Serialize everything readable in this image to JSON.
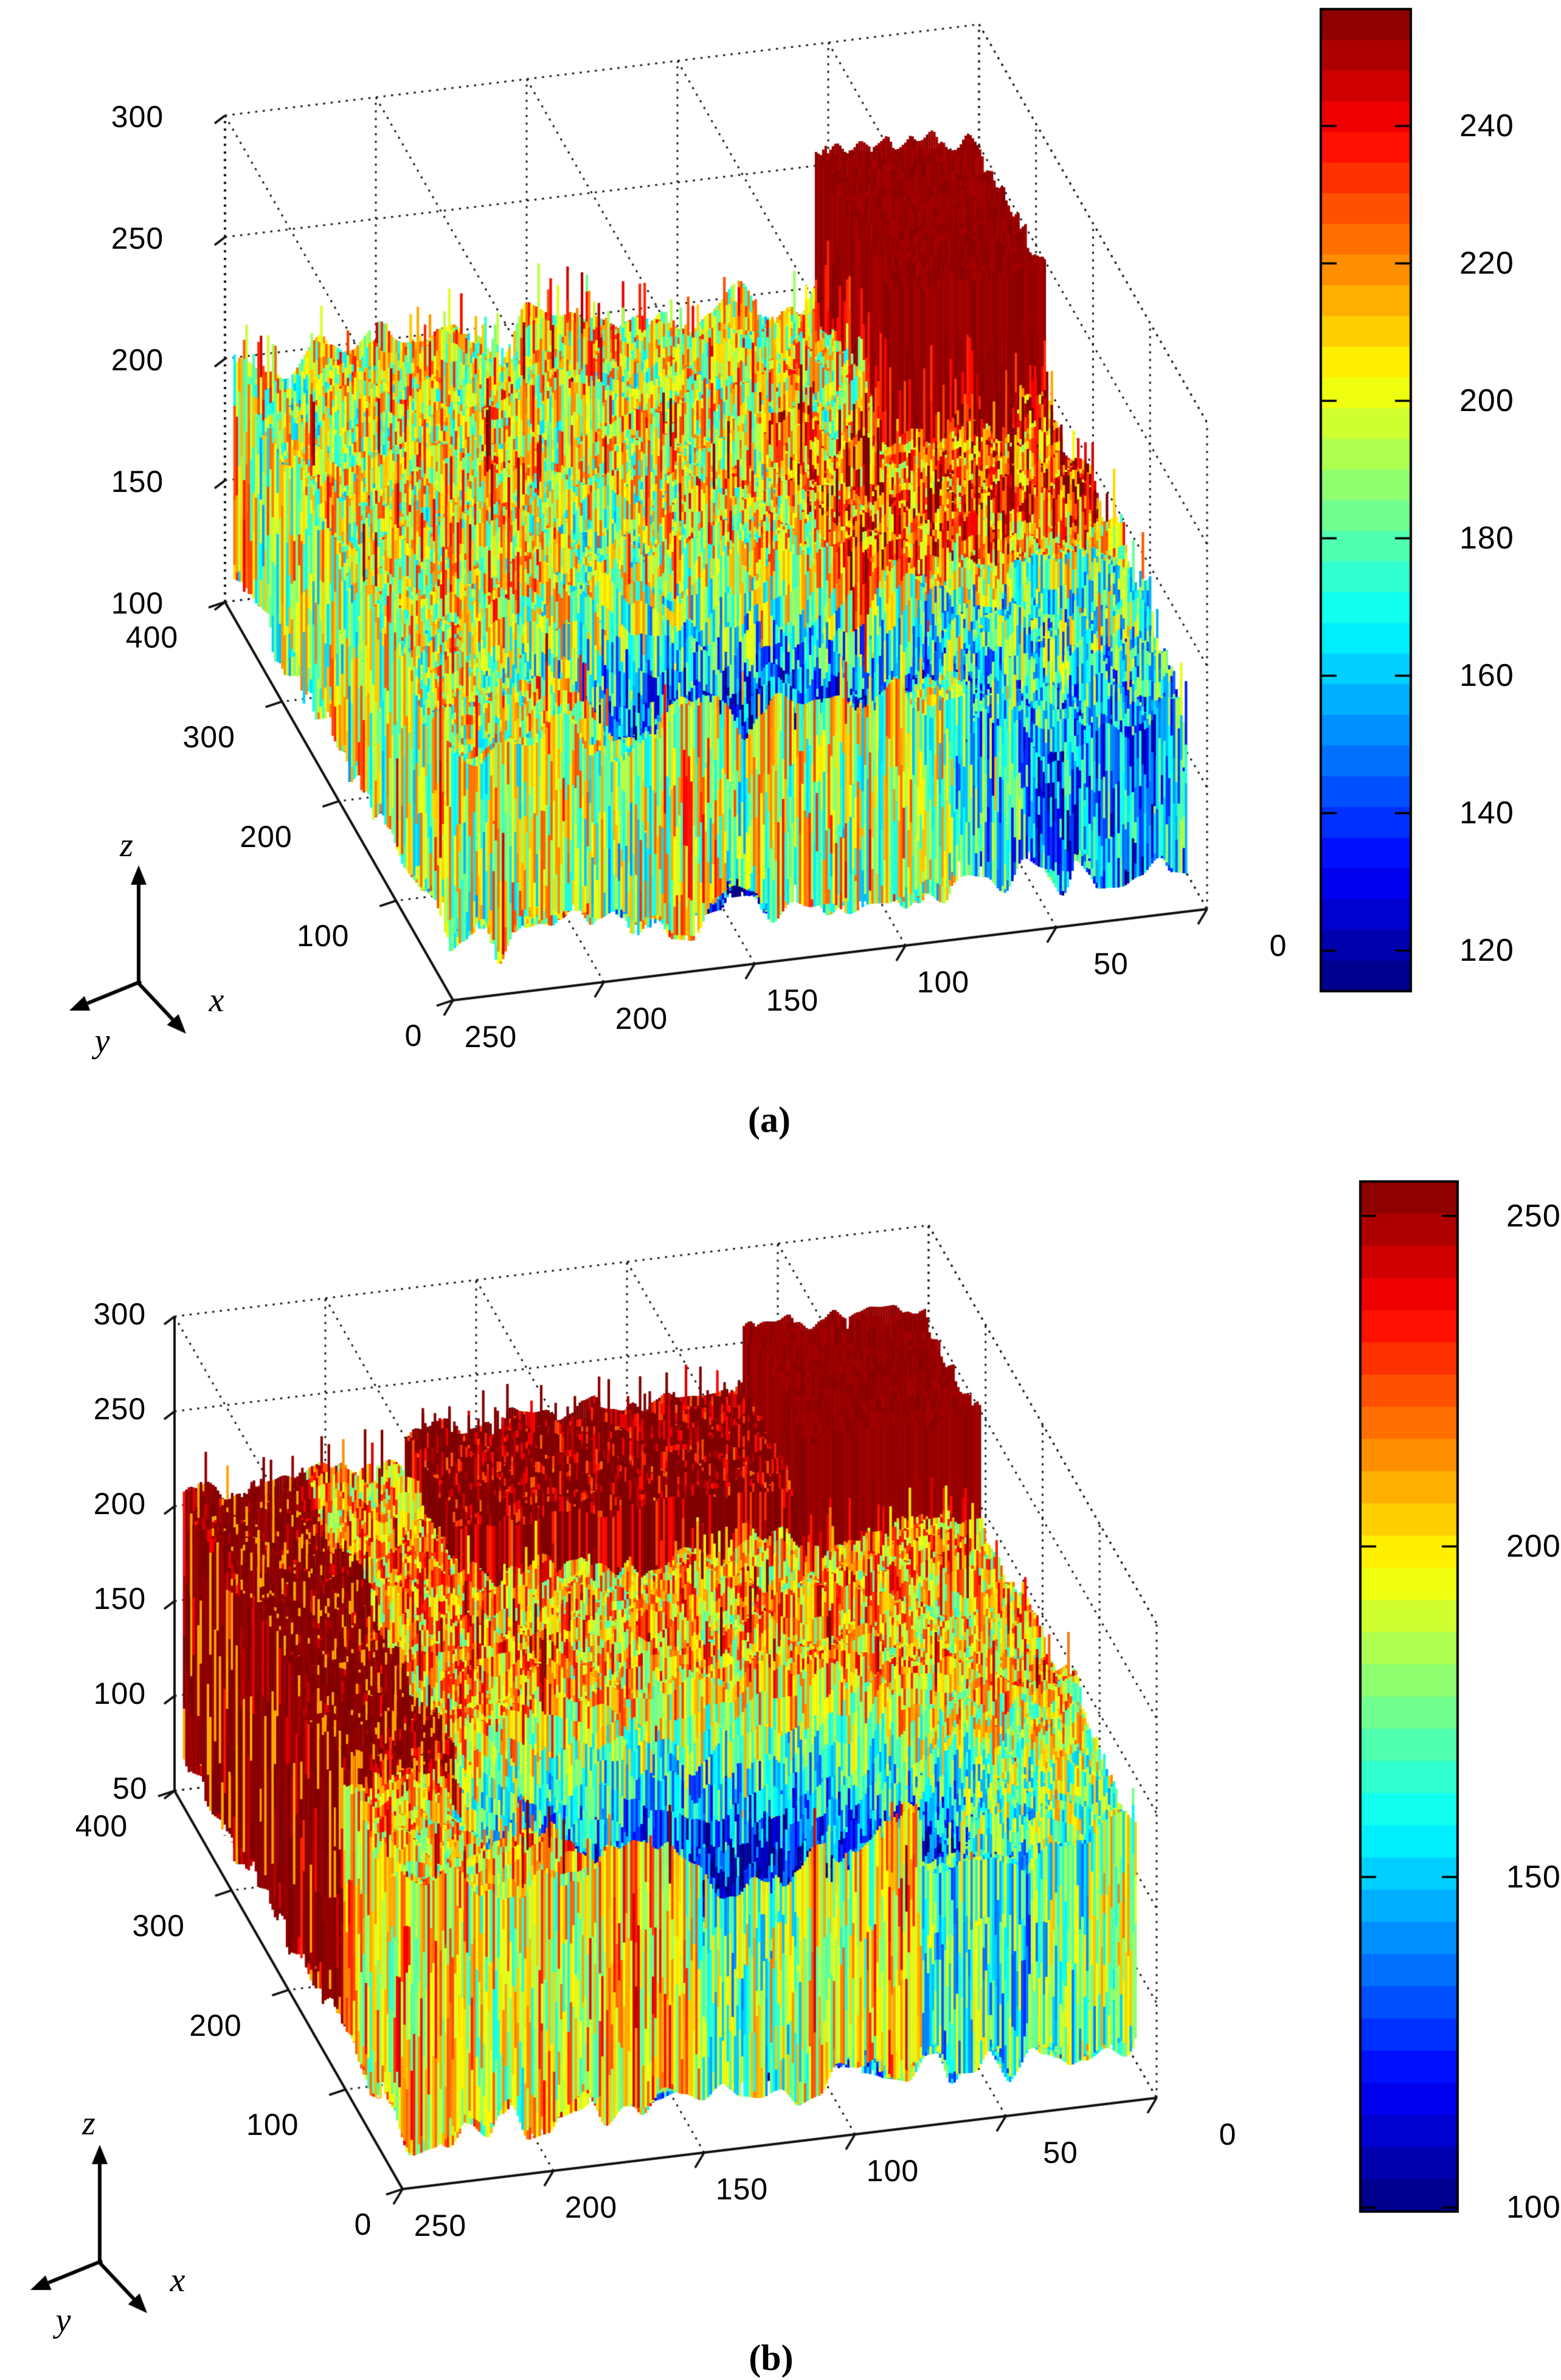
{
  "figure": {
    "background": "#ffffff",
    "description": "Two MATLAB-style 3D surface plots of image gray-level intensity over pixel coordinates, each with a quantized jet colorbar",
    "colormap": "jet",
    "color_extremes": {
      "low": "#00008f",
      "high": "#800000"
    }
  },
  "chart_data": [
    {
      "id": "a",
      "type": "surface3d",
      "caption": "(a)",
      "x_axis": {
        "ticks": [
          "250",
          "200",
          "150",
          "100",
          "50",
          "0"
        ],
        "range": [
          0,
          250
        ]
      },
      "y_axis": {
        "ticks": [
          "400",
          "300",
          "200",
          "100",
          "0"
        ],
        "range": [
          0,
          400
        ]
      },
      "z_axis": {
        "ticks": [
          "300",
          "250",
          "200",
          "150",
          "100"
        ],
        "range": [
          100,
          300
        ]
      },
      "colorbar": {
        "ticks": [
          "240",
          "220",
          "200",
          "180",
          "160",
          "140",
          "120"
        ],
        "value_range": [
          114,
          257
        ],
        "colormap": "jet"
      },
      "axis_indicator": {
        "up_label": "z",
        "right_label": "x",
        "left_label": "y"
      },
      "surface_summary": "Spiky jet-colored intensity surface: plateau top near z=195-215 with mixed cyan/yellow/red speckle; flat dark-red block at x<55, y>262 reaching z=250-262; red/orange flank on right side (x<95, y=135-290); deep blue valley centered near (x=140, y=88) dipping to z=115; cyan/green slope at front right"
    },
    {
      "id": "b",
      "type": "surface3d",
      "caption": "(b)",
      "x_axis": {
        "ticks": [
          "250",
          "200",
          "150",
          "100",
          "50",
          "0"
        ],
        "range": [
          0,
          250
        ]
      },
      "y_axis": {
        "ticks": [
          "400",
          "300",
          "200",
          "100",
          "0"
        ],
        "range": [
          0,
          400
        ]
      },
      "z_axis": {
        "ticks": [
          "300",
          "250",
          "200",
          "150",
          "100",
          "50"
        ],
        "range": [
          50,
          300
        ]
      },
      "colorbar": {
        "ticks": [
          "250",
          "200",
          "150",
          "100"
        ],
        "value_range": [
          99,
          255
        ],
        "colormap": "jet"
      },
      "axis_indicator": {
        "up_label": "z",
        "right_label": "x",
        "left_label": "y"
      },
      "surface_summary": "Denser, warmer spiky surface: plateau near z=200-225; dark-red block at x<62, y>288 reaching z=250-266 plus red/orange ridge at 62<x<175, y>300; tall red/dark-red wall with yellow streaks along left edge (x>208); large deep blue/cyan basin centered near (x=128, y=92) dipping to z=70"
    }
  ]
}
